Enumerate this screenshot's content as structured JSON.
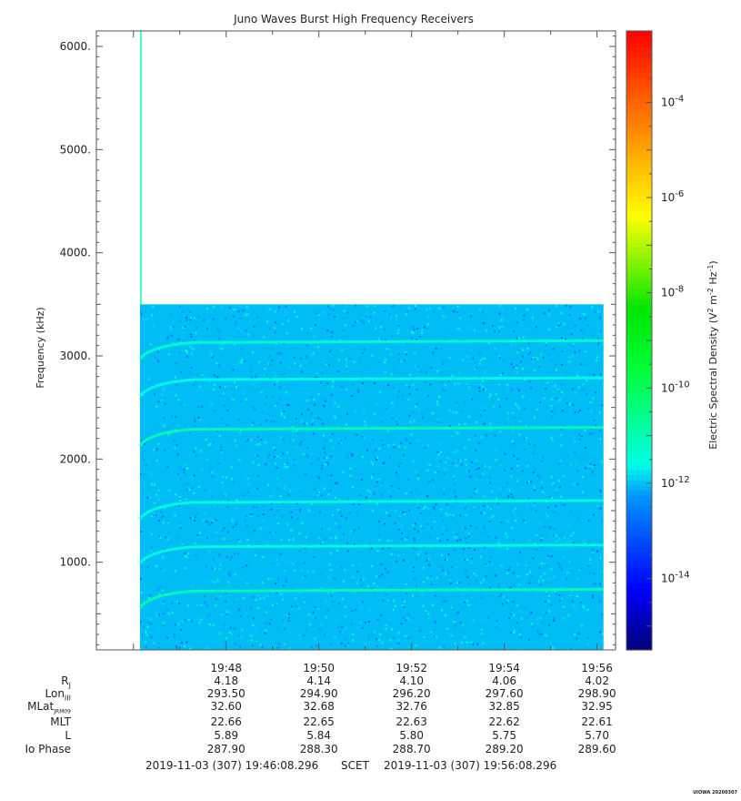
{
  "chart_data": {
    "type": "heatmap",
    "title": "Juno Waves Burst High Frequency Receivers",
    "ylabel": "Frequency (kHz)",
    "colorbar_label": "Electric Spectral Density (V^2 m^-2 Hz^-1)",
    "ylim": [
      150,
      6150
    ],
    "y_ticks": [
      "1000.",
      "2000.",
      "3000.",
      "4000.",
      "5000.",
      "6000."
    ],
    "y_tick_values": [
      1000,
      2000,
      3000,
      4000,
      5000,
      6000
    ],
    "x_ticks": [
      "19:48",
      "19:50",
      "19:52",
      "19:54",
      "19:56"
    ],
    "x_tick_minutes": [
      1188,
      1190,
      1192,
      1194,
      1196
    ],
    "xlim_minutes": [
      1185.2,
      1196.4
    ],
    "data_start_minutes": [
      1186.14
    ],
    "data_end_minutes": [
      1196.14
    ],
    "data_top_khz": 3500,
    "colorbar_range_log10": [
      -15.5,
      -2.5
    ],
    "colorbar_ticks": [
      "10^-4",
      "10^-6",
      "10^-8",
      "10^-10",
      "10^-12",
      "10^-14"
    ],
    "colorbar_tick_exponents": [
      -4,
      -6,
      -8,
      -10,
      -12,
      -14
    ],
    "background_level_log10": -12,
    "emission_bands": [
      {
        "freq_khz": 720,
        "level_log10": -11.0
      },
      {
        "freq_khz": 1150,
        "level_log10": -11.5
      },
      {
        "freq_khz": 1580,
        "level_log10": -11.5
      },
      {
        "freq_khz": 2290,
        "level_log10": -11.0
      },
      {
        "freq_khz": 2770,
        "level_log10": -11.6
      },
      {
        "freq_khz": 3130,
        "level_log10": -11.3
      }
    ]
  },
  "ephemeris": {
    "rows": [
      {
        "label": "RJ",
        "values": [
          "4.18",
          "4.14",
          "4.10",
          "4.06",
          "4.02"
        ]
      },
      {
        "label": "LonIII",
        "values": [
          "293.50",
          "294.90",
          "296.20",
          "297.60",
          "298.90"
        ]
      },
      {
        "label": "MLatJRM09",
        "values": [
          "32.60",
          "32.68",
          "32.76",
          "32.85",
          "32.95"
        ]
      },
      {
        "label": "MLT",
        "values": [
          "22.66",
          "22.65",
          "22.63",
          "22.62",
          "22.61"
        ]
      },
      {
        "label": "L",
        "values": [
          "5.89",
          "5.84",
          "5.80",
          "5.75",
          "5.70"
        ]
      },
      {
        "label": "Io Phase",
        "values": [
          "287.90",
          "288.30",
          "288.70",
          "289.20",
          "289.60"
        ]
      }
    ]
  },
  "footer": {
    "start": "2019-11-03 (307) 19:46:08.296",
    "scet": "SCET",
    "end": "2019-11-03 (307) 19:56:08.296"
  },
  "credit": "UIOWA 20200307"
}
